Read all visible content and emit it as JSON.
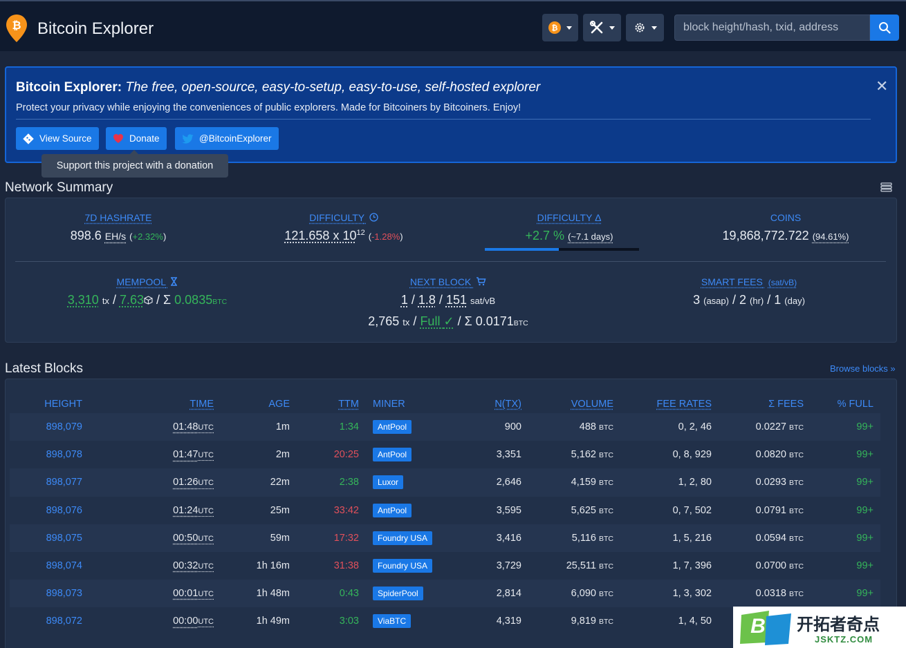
{
  "header": {
    "title": "Bitcoin Explorer",
    "search_placeholder": "block height/hash, txid, address",
    "coin_icon": "bitcoin-icon",
    "tools_icon": "tools-icon",
    "settings_icon": "gear-icon"
  },
  "banner": {
    "title_bold": "Bitcoin Explorer:",
    "title_italic": "The free, open-source, easy-to-setup, easy-to-use, self-hosted explorer",
    "subtitle": "Protect your privacy while enjoying the conveniences of public explorers. Made for Bitcoiners by Bitcoiners. Enjoy!",
    "buttons": {
      "view_source": "View Source",
      "donate": "Donate",
      "twitter": "@BitcoinExplorer"
    },
    "tooltip": "Support this project with a donation"
  },
  "network_summary": {
    "title": "Network Summary",
    "hashrate": {
      "label": "7D HASHRATE",
      "value": "898.6",
      "unit": "EH/s",
      "change": "+2.32%"
    },
    "difficulty": {
      "label": "DIFFICULTY",
      "value": "121.658 x 10",
      "exp": "12",
      "change": "-1.28%"
    },
    "difficulty_delta": {
      "label": "DIFFICULTY Δ",
      "value": "+2.7 %",
      "eta": "(~7.1 days)",
      "progress": 0.48
    },
    "coins": {
      "label": "COINS",
      "value": "19,868,772.722",
      "pct": "(94.61%)"
    },
    "mempool": {
      "label": "MEMPOOL",
      "tx": "3,310",
      "tx_unit": "tx",
      "blocks": "7.63",
      "sum": "0.0835",
      "sum_unit": "BTC"
    },
    "next_block": {
      "label": "NEXT BLOCK",
      "fee_min": "1",
      "fee_med": "1.8",
      "fee_max": "151",
      "fee_unit": "sat/vB",
      "tx": "2,765",
      "tx_unit": "tx",
      "status": "Full",
      "sum": "0.0171",
      "sum_unit": "BTC"
    },
    "smart_fees": {
      "label": "SMART FEES",
      "unit": "(sat/vB)",
      "asap": "3",
      "asap_lbl": "(asap)",
      "hr": "2",
      "hr_lbl": "(hr)",
      "day": "1",
      "day_lbl": "(day)"
    }
  },
  "latest_blocks": {
    "title": "Latest Blocks",
    "browse": "Browse blocks »",
    "columns": [
      "HEIGHT",
      "TIME",
      "AGE",
      "TTM",
      "MINER",
      "N(TX)",
      "VOLUME",
      "FEE RATES",
      "Σ FEES",
      "% FULL"
    ],
    "utc_label": "UTC",
    "btc_label": "BTC",
    "rows": [
      {
        "height": "898,079",
        "time": "01:48",
        "age": "1m",
        "ttm": "1:34",
        "ttm_color": "green",
        "miner": "AntPool",
        "ntx": "900",
        "volume": "488",
        "fees": "0, 2, 46",
        "sum_fees": "0.0227",
        "full": "99+"
      },
      {
        "height": "898,078",
        "time": "01:47",
        "age": "2m",
        "ttm": "20:25",
        "ttm_color": "red",
        "miner": "AntPool",
        "ntx": "3,351",
        "volume": "5,162",
        "fees": "0, 8, 929",
        "sum_fees": "0.0820",
        "full": "99+"
      },
      {
        "height": "898,077",
        "time": "01:26",
        "age": "22m",
        "ttm": "2:38",
        "ttm_color": "green",
        "miner": "Luxor",
        "ntx": "2,646",
        "volume": "4,159",
        "fees": "1, 2, 80",
        "sum_fees": "0.0293",
        "full": "99+"
      },
      {
        "height": "898,076",
        "time": "01:24",
        "age": "25m",
        "ttm": "33:42",
        "ttm_color": "red",
        "miner": "AntPool",
        "ntx": "3,595",
        "volume": "5,625",
        "fees": "0, 7, 502",
        "sum_fees": "0.0791",
        "full": "99+"
      },
      {
        "height": "898,075",
        "time": "00:50",
        "age": "59m",
        "ttm": "17:32",
        "ttm_color": "red",
        "miner": "Foundry USA",
        "ntx": "3,416",
        "volume": "5,116",
        "fees": "1, 5, 216",
        "sum_fees": "0.0594",
        "full": "99+"
      },
      {
        "height": "898,074",
        "time": "00:32",
        "age": "1h 16m",
        "ttm": "31:38",
        "ttm_color": "red",
        "miner": "Foundry USA",
        "ntx": "3,729",
        "volume": "25,511",
        "fees": "1, 7, 396",
        "sum_fees": "0.0700",
        "full": "99+"
      },
      {
        "height": "898,073",
        "time": "00:01",
        "age": "1h 48m",
        "ttm": "0:43",
        "ttm_color": "green",
        "miner": "SpiderPool",
        "ntx": "2,814",
        "volume": "6,090",
        "fees": "1, 3, 302",
        "sum_fees": "0.0318",
        "full": "99+"
      },
      {
        "height": "898,072",
        "time": "00:00",
        "age": "1h 49m",
        "ttm": "3:03",
        "ttm_color": "green",
        "miner": "ViaBTC",
        "ntx": "4,319",
        "volume": "9,819",
        "fees": "1, 4, 50",
        "sum_fees": "",
        "full": ""
      }
    ]
  },
  "watermark": {
    "text_cn": "开拓者奇点",
    "text_en": "JSKTZ.COM"
  }
}
